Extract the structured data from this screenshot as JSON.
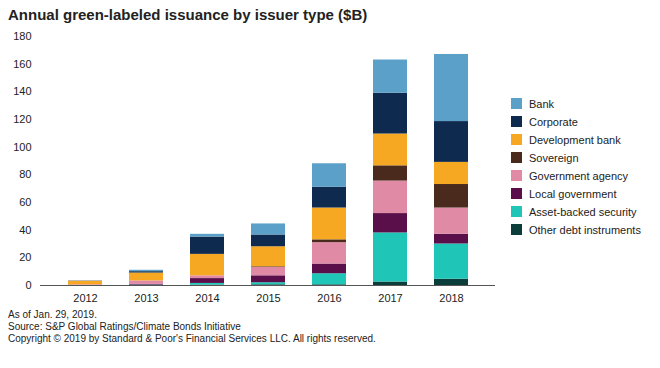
{
  "chart_data": {
    "type": "bar",
    "title": "Annual green-labeled issuance by issuer type ($B)",
    "notes": [
      "As of Jan. 29, 2019.",
      "Source: S&P Global Ratings/Climate Bonds Initiative",
      "Copyright © 2019 by Standard & Poor's Financial Services LLC. All rights reserved."
    ],
    "categories": [
      "2012",
      "2013",
      "2014",
      "2015",
      "2016",
      "2017",
      "2018"
    ],
    "stacked": true,
    "grid": false,
    "legend": "right",
    "ylim": [
      0,
      180
    ],
    "yticks": [
      0,
      20,
      40,
      60,
      80,
      100,
      120,
      140,
      160,
      180
    ],
    "series": [
      {
        "name": "Other debt instruments",
        "color": "#0b3d3a",
        "values": [
          0,
          0,
          0.3,
          0.5,
          0.5,
          2.5,
          4.5
        ]
      },
      {
        "name": "Asset-backed security",
        "color": "#1fc6b8",
        "values": [
          0,
          0.3,
          1.2,
          1.5,
          8,
          35.5,
          25.5
        ]
      },
      {
        "name": "Local government",
        "color": "#5a0f4a",
        "values": [
          0,
          0.5,
          3.5,
          5,
          7,
          14,
          7
        ]
      },
      {
        "name": "Government agency",
        "color": "#e08aa6",
        "values": [
          0.5,
          2.5,
          2,
          6,
          15.5,
          23.5,
          19
        ]
      },
      {
        "name": "Sovereign",
        "color": "#4a2a1c",
        "values": [
          0,
          0,
          0,
          0.5,
          2,
          11,
          17
        ]
      },
      {
        "name": "Development bank",
        "color": "#f7a823",
        "values": [
          2.5,
          5.7,
          15.5,
          14.5,
          23,
          23,
          16
        ]
      },
      {
        "name": "Corporate",
        "color": "#0f2a4f",
        "values": [
          0.2,
          1,
          12.5,
          8.5,
          15,
          29.5,
          29.5
        ]
      },
      {
        "name": "Bank",
        "color": "#5aa0c8",
        "values": [
          0,
          1,
          2,
          8,
          17,
          24,
          48.5
        ]
      }
    ]
  }
}
